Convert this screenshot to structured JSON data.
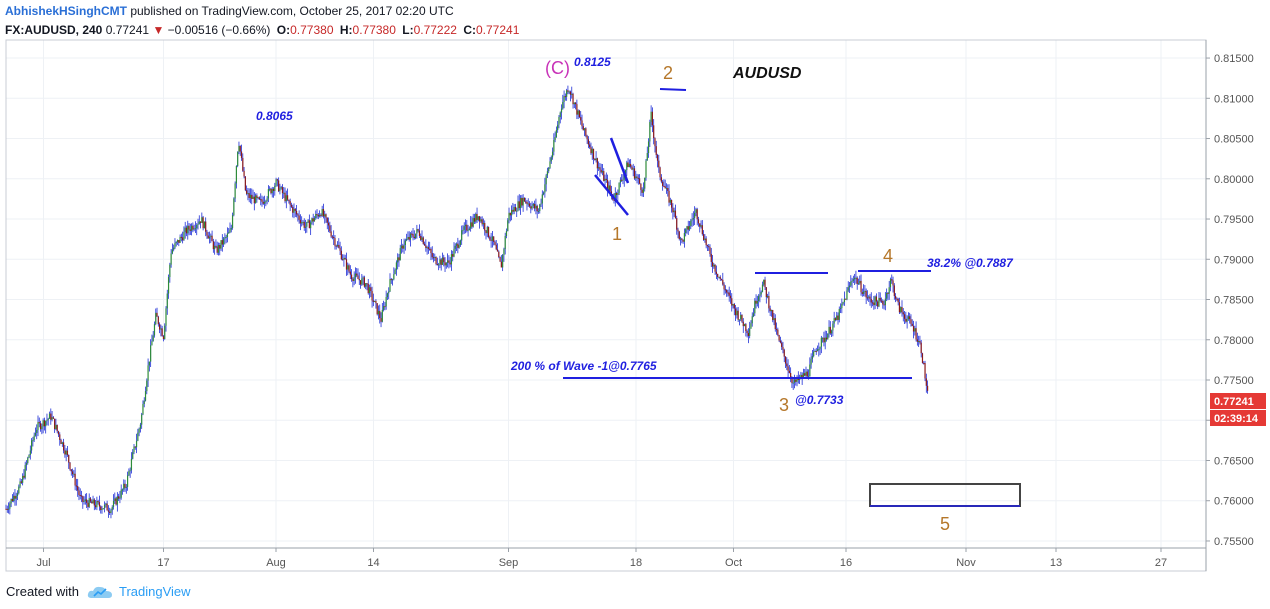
{
  "header": {
    "author": "AbhishekHSinghCMT",
    "published_text": " published on TradingView.com, October 25, 2017 02:20 UTC"
  },
  "ohlc": {
    "symbol": "FX:AUDUSD, 240",
    "last": "0.77241",
    "arrow": "▼",
    "change": "−0.00516 (−0.66%)",
    "o_label": "O:",
    "o_value": "0.77380",
    "h_label": "H:",
    "h_value": "0.77380",
    "l_label": "L:",
    "l_value": "0.77222",
    "c_label": "C:",
    "c_value": "0.77241"
  },
  "footer": {
    "created_with": "Created with",
    "brand": "TradingView"
  },
  "colors": {
    "up_candle": "#2e8b3a",
    "down_candle": "#8b1a1a",
    "wick": "#1f2fd6",
    "annotation_blue": "#1f1fe0",
    "wave_orange": "#b5772a",
    "wave_magenta": "#c832b8",
    "price_badge": "#e53935",
    "axis_text": "#555555",
    "grid": "#eef1f5"
  },
  "chart_data": {
    "type": "candlestick",
    "title": "AUDUSD",
    "ylim": [
      0.7545,
      0.816
    ],
    "y_ticks": [
      "0.81500",
      "0.81000",
      "0.80500",
      "0.80000",
      "0.79500",
      "0.79000",
      "0.78500",
      "0.78000",
      "0.77500",
      "0.77000",
      "0.76500",
      "0.76000",
      "0.75500"
    ],
    "x_ticks": [
      "Jul",
      "17",
      "Aug",
      "14",
      "Sep",
      "18",
      "Oct",
      "16",
      "Nov",
      "13",
      "27"
    ],
    "last_price": "0.77241",
    "countdown": "02:39:14",
    "price_path": [
      [
        "2017-06-26",
        0.759
      ],
      [
        "2017-06-28",
        0.762
      ],
      [
        "2017-06-30",
        0.769
      ],
      [
        "2017-07-02",
        0.7705
      ],
      [
        "2017-07-04",
        0.766
      ],
      [
        "2017-07-06",
        0.76
      ],
      [
        "2017-07-08",
        0.7595
      ],
      [
        "2017-07-10",
        0.759
      ],
      [
        "2017-07-12",
        0.762
      ],
      [
        "2017-07-14",
        0.77
      ],
      [
        "2017-07-15",
        0.777
      ],
      [
        "2017-07-16",
        0.783
      ],
      [
        "2017-07-17",
        0.7805
      ],
      [
        "2017-07-18",
        0.791
      ],
      [
        "2017-07-20",
        0.7935
      ],
      [
        "2017-07-22",
        0.795
      ],
      [
        "2017-07-24",
        0.791
      ],
      [
        "2017-07-26",
        0.7935
      ],
      [
        "2017-07-27",
        0.805
      ],
      [
        "2017-07-28",
        0.798
      ],
      [
        "2017-07-30",
        0.797
      ],
      [
        "2017-08-01",
        0.7995
      ],
      [
        "2017-08-03",
        0.7965
      ],
      [
        "2017-08-05",
        0.794
      ],
      [
        "2017-08-07",
        0.796
      ],
      [
        "2017-08-09",
        0.792
      ],
      [
        "2017-08-11",
        0.788
      ],
      [
        "2017-08-13",
        0.787
      ],
      [
        "2017-08-15",
        0.7825
      ],
      [
        "2017-08-16",
        0.7865
      ],
      [
        "2017-08-18",
        0.792
      ],
      [
        "2017-08-20",
        0.7935
      ],
      [
        "2017-08-22",
        0.79
      ],
      [
        "2017-08-24",
        0.7895
      ],
      [
        "2017-08-26",
        0.7935
      ],
      [
        "2017-08-28",
        0.7955
      ],
      [
        "2017-08-30",
        0.792
      ],
      [
        "2017-08-31",
        0.789
      ],
      [
        "2017-09-01",
        0.7955
      ],
      [
        "2017-09-03",
        0.7975
      ],
      [
        "2017-09-05",
        0.796
      ],
      [
        "2017-09-06",
        0.8
      ],
      [
        "2017-09-07",
        0.804
      ],
      [
        "2017-09-08",
        0.809
      ],
      [
        "2017-09-09",
        0.8115
      ],
      [
        "2017-09-11",
        0.806
      ],
      [
        "2017-09-13",
        0.8015
      ],
      [
        "2017-09-15",
        0.7975
      ],
      [
        "2017-09-17",
        0.802
      ],
      [
        "2017-09-19",
        0.7985
      ],
      [
        "2017-09-20",
        0.808
      ],
      [
        "2017-09-21",
        0.801
      ],
      [
        "2017-09-23",
        0.796
      ],
      [
        "2017-09-24",
        0.792
      ],
      [
        "2017-09-26",
        0.796
      ],
      [
        "2017-09-28",
        0.79
      ],
      [
        "2017-09-30",
        0.786
      ],
      [
        "2017-10-01",
        0.784
      ],
      [
        "2017-10-03",
        0.781
      ],
      [
        "2017-10-04",
        0.785
      ],
      [
        "2017-10-05",
        0.787
      ],
      [
        "2017-10-07",
        0.78
      ],
      [
        "2017-10-09",
        0.7745
      ],
      [
        "2017-10-11",
        0.776
      ],
      [
        "2017-10-12",
        0.779
      ],
      [
        "2017-10-13",
        0.78
      ],
      [
        "2017-10-15",
        0.783
      ],
      [
        "2017-10-17",
        0.788
      ],
      [
        "2017-10-19",
        0.785
      ],
      [
        "2017-10-21",
        0.7845
      ],
      [
        "2017-10-22",
        0.7875
      ],
      [
        "2017-10-23",
        0.784
      ],
      [
        "2017-10-25",
        0.7815
      ],
      [
        "2017-10-26",
        0.779
      ],
      [
        "2017-10-27",
        0.7724
      ]
    ],
    "annotations": {
      "title": "AUDUSD",
      "wave_c_label": "(C)",
      "wave_c_price": "0.8125",
      "high_label": "0.8065",
      "wave1": "1",
      "wave2": "2",
      "wave3": "3",
      "wave4": "4",
      "wave5": "5",
      "wave3_price": "@0.7733",
      "fib200": "200 % of Wave -1@0.7765",
      "fib382": "38.2% @0.7887"
    }
  }
}
